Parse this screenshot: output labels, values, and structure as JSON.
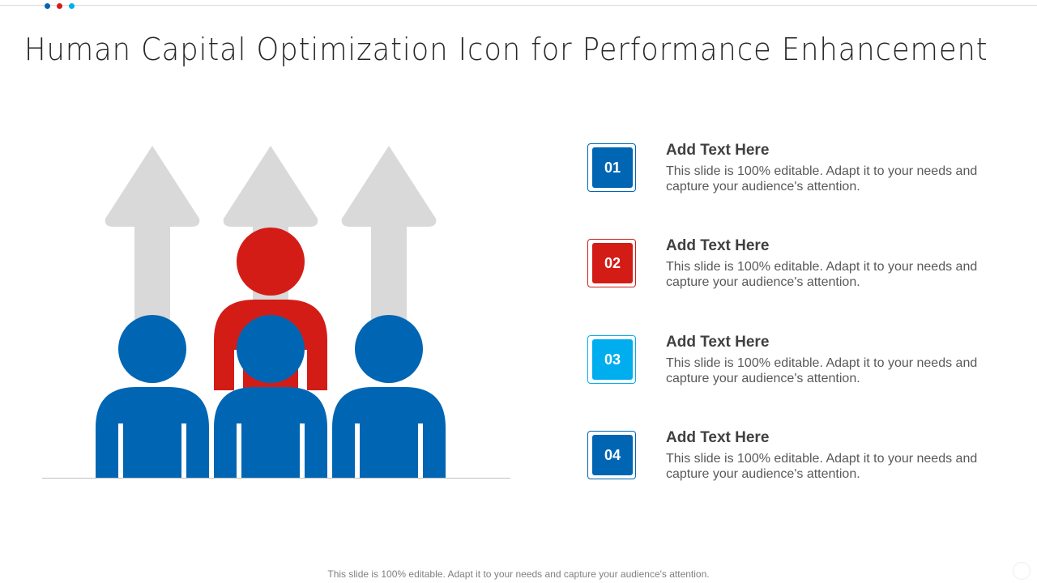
{
  "title": "Human Capital Optimization Icon for Performance Enhancement",
  "colors": {
    "blue": "#0066B3",
    "red": "#D41C17",
    "light_blue": "#00AEEF",
    "gray_arrow": "#D9D9D9",
    "baseline": "#BFBFBF"
  },
  "illustration": {
    "icon": "people-growth-arrows-icon"
  },
  "items": [
    {
      "number": "01",
      "heading": "Add Text Here",
      "description": "This slide is 100% editable. Adapt it to your needs and capture your audience's attention.",
      "color": "#0066B3"
    },
    {
      "number": "02",
      "heading": "Add Text Here",
      "description": "This slide is 100% editable. Adapt it to your needs and capture your audience's attention.",
      "color": "#D41C17"
    },
    {
      "number": "03",
      "heading": "Add Text Here",
      "description": "This slide is 100% editable. Adapt it to your needs and capture your audience's attention.",
      "color": "#00AEEF"
    },
    {
      "number": "04",
      "heading": "Add Text Here",
      "description": "This slide is 100% editable. Adapt it to your needs and capture your audience's attention.",
      "color": "#0066B3"
    }
  ],
  "footer": "This slide is 100% editable. Adapt it to your needs and capture your audience's attention."
}
